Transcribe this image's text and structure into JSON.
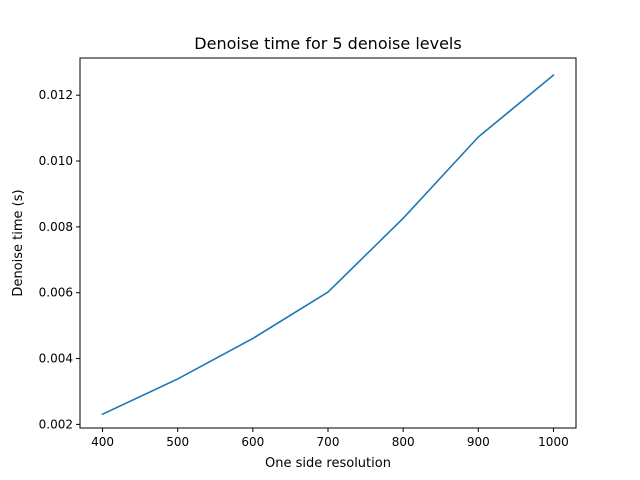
{
  "chart_data": {
    "type": "line",
    "title": "Denoise time for 5 denoise levels",
    "xlabel": "One side resolution",
    "ylabel": "Denoise time (s)",
    "xlim": [
      370,
      1030
    ],
    "ylim": [
      0.00189,
      0.01313
    ],
    "x_ticks": [
      400,
      500,
      600,
      700,
      800,
      900,
      1000
    ],
    "x_tick_labels": [
      "400",
      "500",
      "600",
      "700",
      "800",
      "900",
      "1000"
    ],
    "y_ticks": [
      0.002,
      0.004,
      0.006,
      0.008,
      0.01,
      0.012
    ],
    "y_tick_labels": [
      "0.002",
      "0.004",
      "0.006",
      "0.008",
      "0.010",
      "0.012"
    ],
    "grid": false,
    "series": [
      {
        "x": [
          400,
          500,
          600,
          700,
          800,
          900,
          1000
        ],
        "y": [
          0.00231,
          0.00338,
          0.00461,
          0.00602,
          0.00826,
          0.01073,
          0.01261
        ],
        "color": "#1f77b4"
      }
    ]
  }
}
